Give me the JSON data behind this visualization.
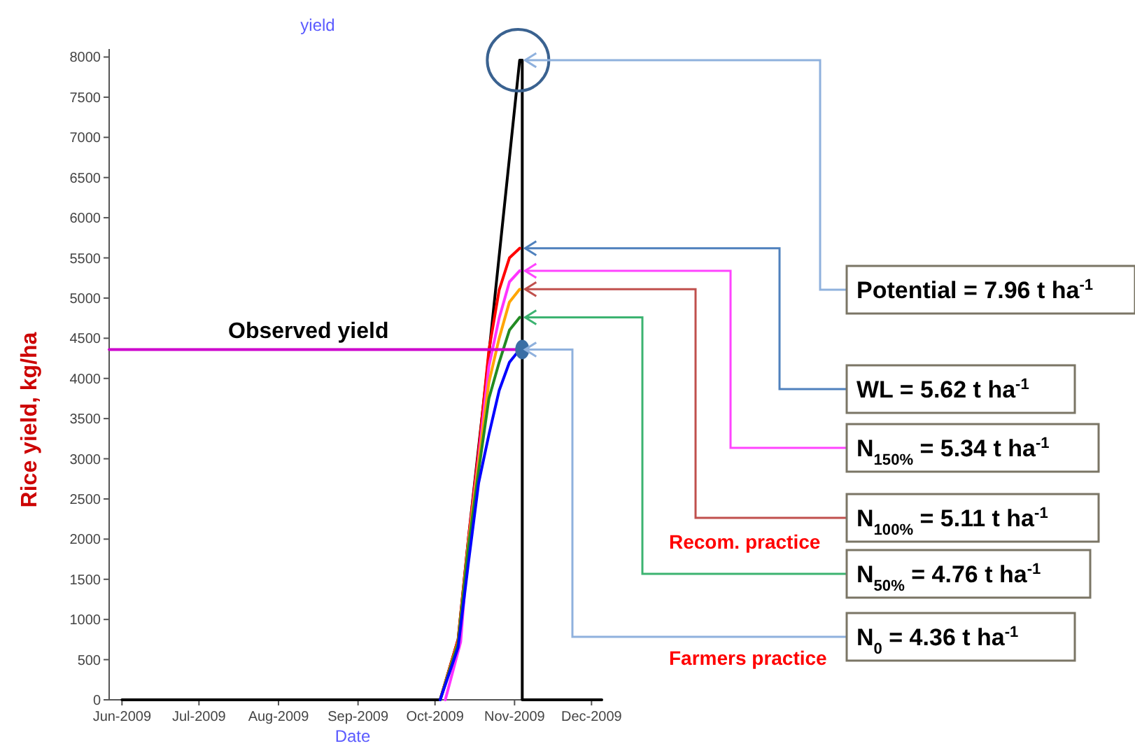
{
  "chart_data": {
    "type": "line",
    "title": "yield",
    "xlabel": "Date",
    "ylabel": "Rice yield, kg/ha",
    "xlim": [
      "2009-05-27",
      "2009-12-05"
    ],
    "xticks": [
      {
        "value": "2009-06-01",
        "label": "Jun-2009"
      },
      {
        "value": "2009-07-01",
        "label": "Jul-2009"
      },
      {
        "value": "2009-08-01",
        "label": "Aug-2009"
      },
      {
        "value": "2009-09-01",
        "label": "Sep-2009"
      },
      {
        "value": "2009-10-01",
        "label": "Oct-2009"
      },
      {
        "value": "2009-11-01",
        "label": "Nov-2009"
      },
      {
        "value": "2009-12-01",
        "label": "Dec-2009"
      }
    ],
    "ylim": [
      0,
      8100
    ],
    "yticks": [
      0,
      500,
      1000,
      1500,
      2000,
      2500,
      3000,
      3500,
      4000,
      4500,
      5000,
      5500,
      6000,
      6500,
      7000,
      7500,
      8000
    ],
    "grid": false,
    "marker": "none",
    "line_style": "solid",
    "series": [
      {
        "color": "#000000",
        "x": [
          "2009-06-01",
          "2009-10-03",
          "2009-10-10",
          "2009-10-14",
          "2009-10-21",
          "2009-11-03",
          "2009-11-04",
          "2009-11-04",
          "2009-12-05"
        ],
        "values": [
          0,
          0,
          750,
          2000,
          4000,
          7960,
          7960,
          0,
          0
        ]
      },
      {
        "color": "#ff0000",
        "x": [
          "2009-10-03",
          "2009-10-10",
          "2009-10-14",
          "2009-10-18",
          "2009-10-22",
          "2009-10-26",
          "2009-10-30",
          "2009-11-03"
        ],
        "values": [
          0,
          750,
          2000,
          3100,
          4350,
          5100,
          5500,
          5620
        ]
      },
      {
        "color": "#ff33ff",
        "x": [
          "2009-10-05",
          "2009-10-11",
          "2009-10-14",
          "2009-10-18",
          "2009-10-22",
          "2009-10-26",
          "2009-10-30",
          "2009-11-03"
        ],
        "values": [
          0,
          720,
          1950,
          3000,
          4150,
          4750,
          5200,
          5340
        ]
      },
      {
        "color": "#ffa500",
        "x": [
          "2009-10-03",
          "2009-10-10",
          "2009-10-14",
          "2009-10-18",
          "2009-10-22",
          "2009-10-26",
          "2009-10-30",
          "2009-11-03"
        ],
        "values": [
          0,
          720,
          1950,
          2950,
          3950,
          4500,
          4950,
          5110
        ]
      },
      {
        "color": "#228b22",
        "x": [
          "2009-10-03",
          "2009-10-10",
          "2009-10-14",
          "2009-10-18",
          "2009-10-22",
          "2009-10-26",
          "2009-10-30",
          "2009-11-03"
        ],
        "values": [
          0,
          700,
          1900,
          2850,
          3750,
          4200,
          4600,
          4760
        ]
      },
      {
        "color": "#0000ff",
        "x": [
          "2009-10-03",
          "2009-10-10",
          "2009-10-14",
          "2009-10-18",
          "2009-10-22",
          "2009-10-26",
          "2009-10-30",
          "2009-11-03"
        ],
        "values": [
          0,
          650,
          1700,
          2700,
          3300,
          3850,
          4200,
          4360
        ]
      },
      {
        "name": "Observed yield",
        "color": "#cc00cc",
        "x": [
          "2009-05-27",
          "2009-11-04"
        ],
        "values": [
          4360,
          4360
        ]
      },
      {
        "type": "scatter",
        "marker": "circle",
        "color": "#3a6ea5",
        "x": [
          "2009-11-04"
        ],
        "values": [
          4360
        ]
      }
    ],
    "annotations": [
      {
        "text": "Potential  = 7.96 t ha$^{-1}$",
        "x": "2009-11-04",
        "y": 7960
      },
      {
        "text": "WL  = 5.62 t ha$^{-1}$",
        "x": "2009-11-04",
        "y": 5620
      },
      {
        "text": "N$_{150%}$ = 5.34 t ha$^{-1}$",
        "x": "2009-11-04",
        "y": 5340
      },
      {
        "text": "N$_{100%}$ = 5.11 t ha$^{-1}$",
        "x": "2009-11-04",
        "y": 5110
      },
      {
        "text": "N$_{50%}$ = 4.76 t ha$^{-1}$",
        "x": "2009-11-04",
        "y": 4760
      },
      {
        "text": "N$_{0}$ = 4.36 t ha$^{-1}$",
        "x": "2009-11-04",
        "y": 4360
      },
      "Recom. practice",
      "Farmers practice"
    ]
  }
}
